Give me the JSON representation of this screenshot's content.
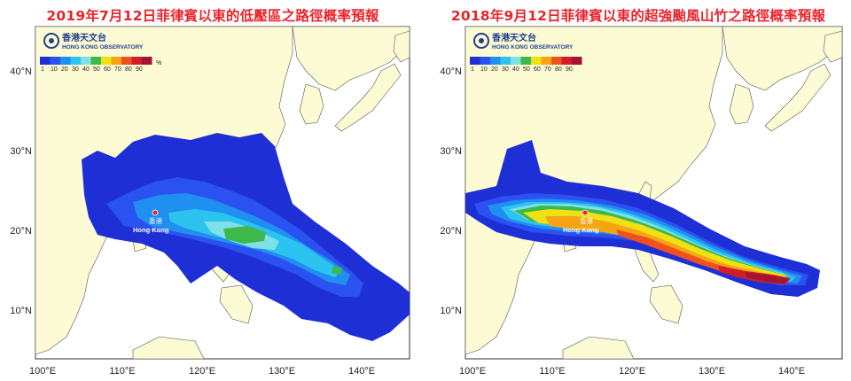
{
  "maps": [
    {
      "title": "2019年7月12日菲律賓以東的低壓區之路徑概率預報",
      "logo": {
        "name_zh": "香港天文台",
        "name_en": "HONG KONG OBSERVATORY"
      },
      "legend": {
        "values": [
          "1",
          "10",
          "20",
          "30",
          "40",
          "50",
          "60",
          "70",
          "80",
          "90"
        ],
        "unit": "%"
      },
      "city": {
        "name_zh": "香港",
        "name_en": "Hong Kong"
      },
      "lat_labels": [
        "40°N",
        "30°N",
        "20°N",
        "10°N"
      ],
      "lon_labels": [
        "100°E",
        "110°E",
        "120°E",
        "130°E",
        "140°E"
      ],
      "max_probability_shown": "50-60"
    },
    {
      "title": "2018年9月12日菲律賓以東的超強颱風山竹之路徑概率預報",
      "logo": {
        "name_zh": "香港天文台",
        "name_en": "HONG KONG OBSERVATORY"
      },
      "legend": {
        "values": [
          "1",
          "10",
          "20",
          "30",
          "40",
          "50",
          "60",
          "70",
          "80",
          "90"
        ],
        "unit": "%"
      },
      "city": {
        "name_zh": "香港",
        "name_en": "Hong Kong"
      },
      "lat_labels": [
        "40°N",
        "30°N",
        "20°N",
        "10°N"
      ],
      "lon_labels": [
        "100°E",
        "110°E",
        "120°E",
        "130°E",
        "140°E"
      ],
      "max_probability_shown": "90+"
    }
  ],
  "legend_colors": [
    "#1f2fd6",
    "#2a52f0",
    "#1f8ff0",
    "#2cc3f0",
    "#7fe0e8",
    "#3db84a",
    "#f0e014",
    "#f5a514",
    "#f0501e",
    "#d21c2a",
    "#a01632"
  ],
  "colors": {
    "land": "#fdfbd4",
    "sea": "#ffffff",
    "title": "#e8242c",
    "logo": "#1f3f8f"
  }
}
